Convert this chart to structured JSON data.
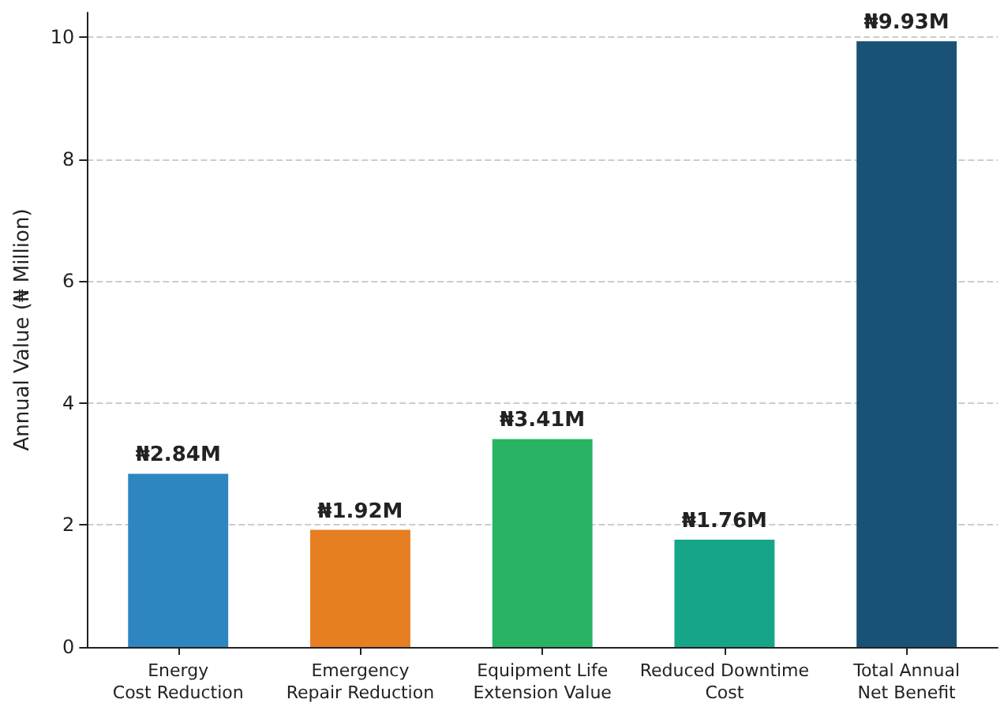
{
  "chart_data": {
    "type": "bar",
    "ylabel": "Annual Value (₦ Million)",
    "categories": [
      "Energy\nCost Reduction",
      "Emergency\nRepair Reduction",
      "Equipment Life\nExtension Value",
      "Reduced Downtime\nCost",
      "Total Annual\nNet Benefit"
    ],
    "values": [
      2.84,
      1.92,
      3.41,
      1.76,
      9.93
    ],
    "colors": [
      "#2e86c1",
      "#e67e22",
      "#28b463",
      "#17a589",
      "#1a5276"
    ],
    "value_labels": [
      "₦2.84M",
      "₦1.92M",
      "₦3.41M",
      "₦1.76M",
      "₦9.93M"
    ],
    "ylim": [
      0,
      10.4
    ],
    "yticks": [
      0,
      2,
      4,
      6,
      8,
      10
    ],
    "grid": "y"
  }
}
